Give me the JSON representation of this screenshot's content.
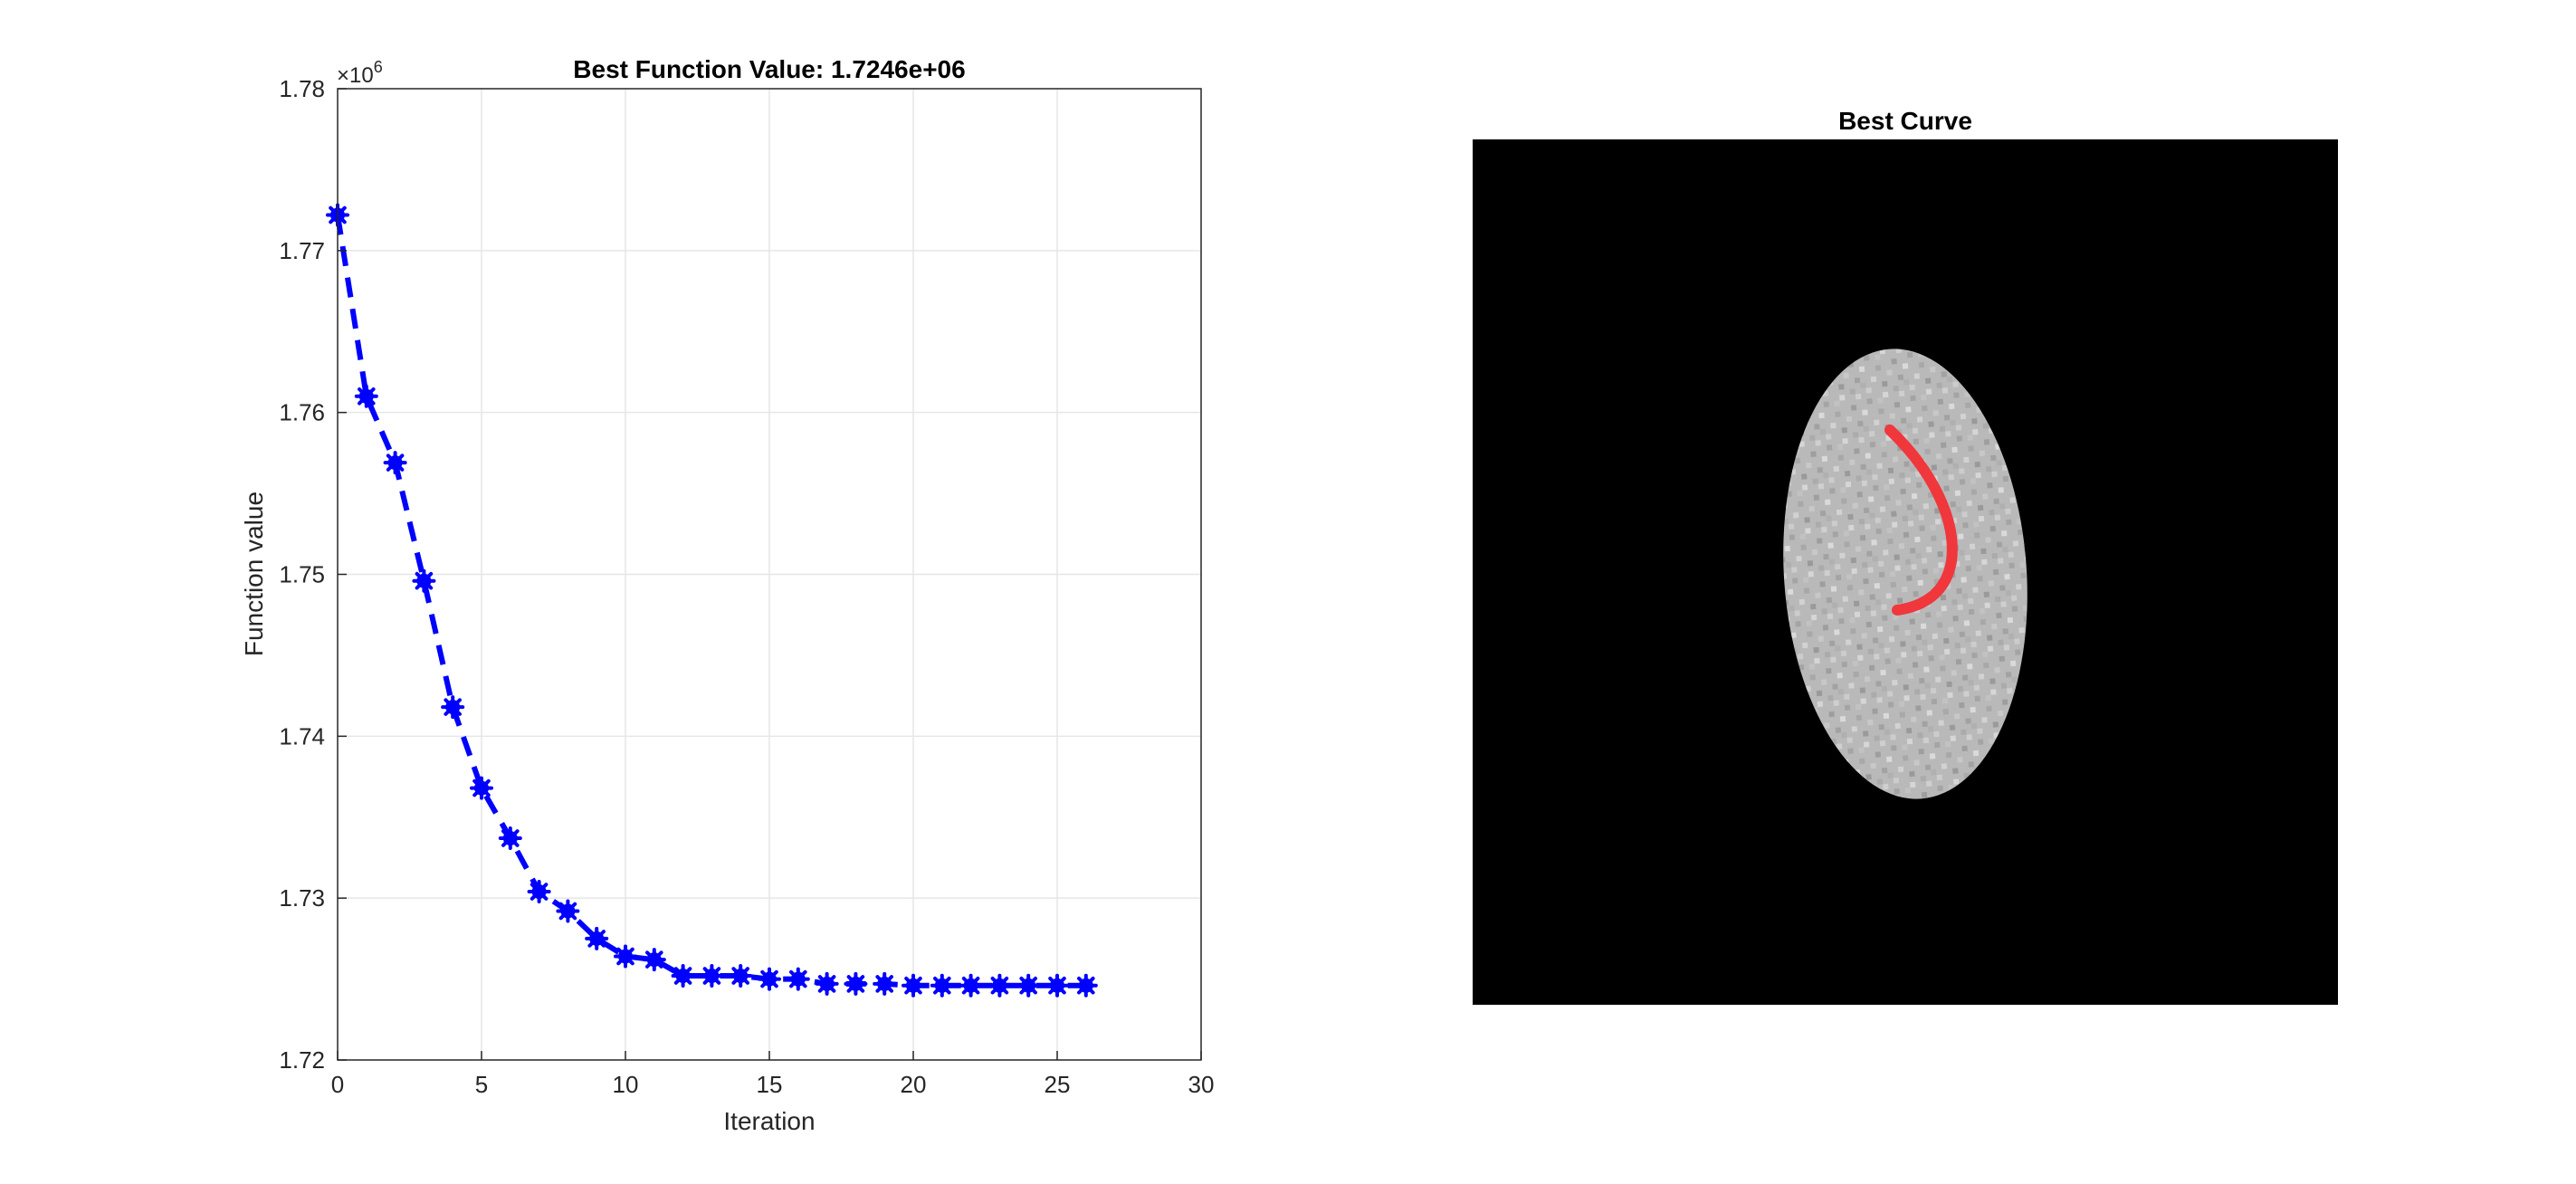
{
  "chart_data": [
    {
      "type": "line",
      "title": "Best Function Value: 1.7246e+06",
      "xlabel": "Iteration",
      "ylabel": "Function value",
      "exponent_base": "×10",
      "exponent_power": "6",
      "xlim": [
        0,
        30
      ],
      "ylim": [
        1.72,
        1.78
      ],
      "xticks": [
        0,
        5,
        10,
        15,
        20,
        25,
        30
      ],
      "xtick_labels": [
        "0",
        "5",
        "10",
        "15",
        "20",
        "25",
        "30"
      ],
      "yticks": [
        1.72,
        1.73,
        1.74,
        1.75,
        1.76,
        1.77,
        1.78
      ],
      "ytick_labels": [
        "1.72",
        "1.73",
        "1.74",
        "1.75",
        "1.76",
        "1.77",
        "1.78"
      ],
      "grid": true,
      "series": [
        {
          "color": "#0000ff",
          "line_style": "dashed",
          "marker": "star",
          "x": [
            0,
            1,
            2,
            3,
            4,
            5,
            6,
            7,
            8,
            9,
            10,
            11,
            12,
            13,
            14,
            15,
            16,
            17,
            18,
            19,
            20,
            21,
            22,
            23,
            24,
            25,
            26
          ],
          "y": [
            1.7722,
            1.761,
            1.7569,
            1.7496,
            1.7418,
            1.7368,
            1.7337,
            1.7304,
            1.7292,
            1.7275,
            1.7264,
            1.7262,
            1.7252,
            1.7252,
            1.7252,
            1.725,
            1.725,
            1.7247,
            1.7247,
            1.7247,
            1.7246,
            1.7246,
            1.7246,
            1.7246,
            1.7246,
            1.7246,
            1.7246
          ]
        }
      ]
    },
    {
      "type": "image",
      "title": "Best Curve",
      "background_color": "#000000",
      "ellipse_color": "#bdbdbd",
      "curve_color": "#f0373c"
    }
  ]
}
